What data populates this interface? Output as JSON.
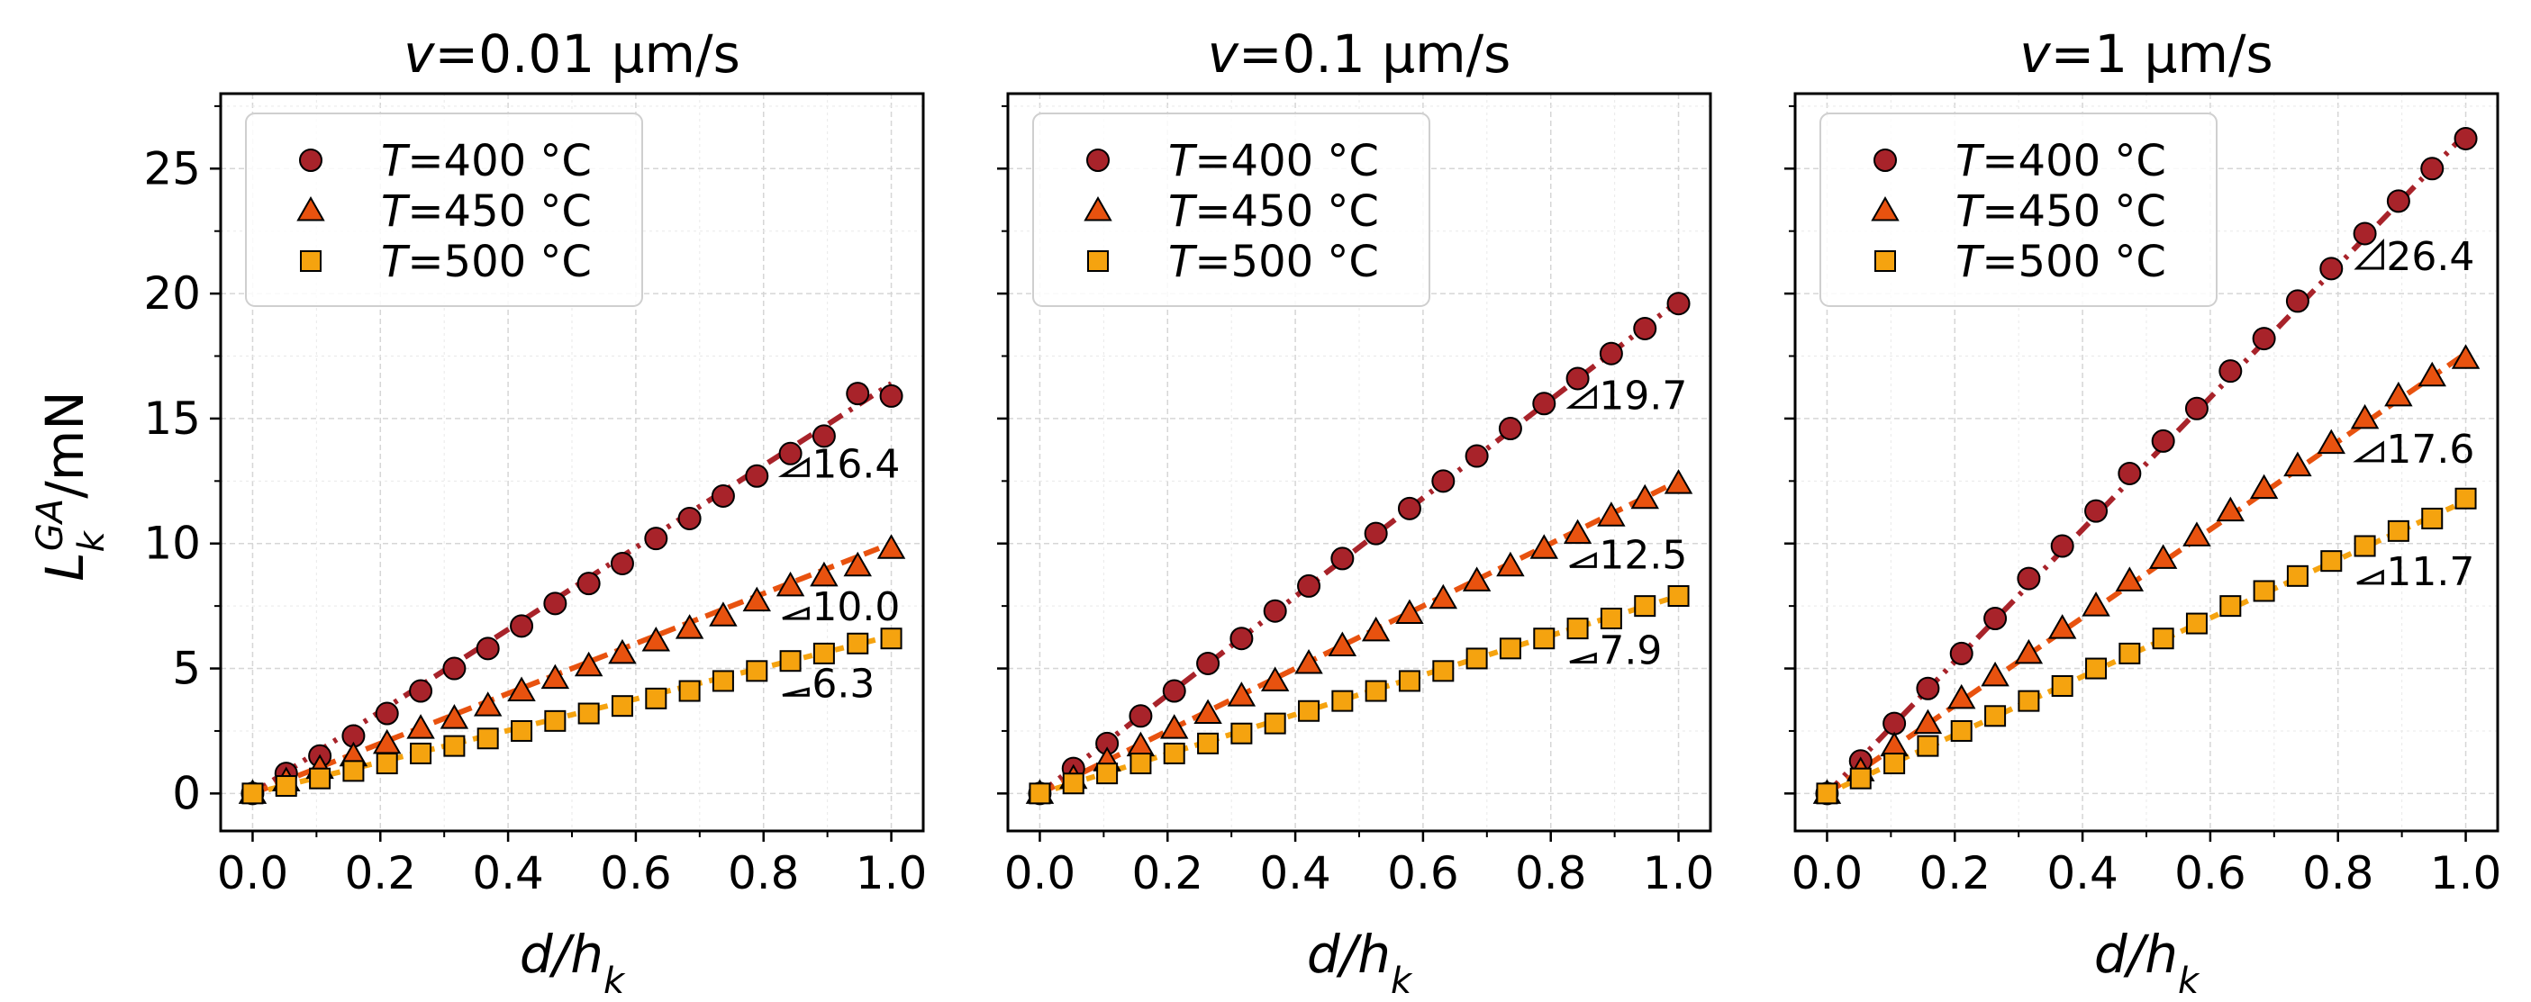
{
  "ylabel_main": "L",
  "ylabel_sub": "k",
  "ylabel_sup": "GA",
  "ylabel_unit": "/mN",
  "xlabel_main": "d/h",
  "xlabel_sub": "k",
  "legend": [
    {
      "label_T": "T",
      "label_rest": "=400 °C",
      "marker": "circle",
      "color": "#a8232a"
    },
    {
      "label_T": "T",
      "label_rest": "=450 °C",
      "marker": "triangle",
      "color": "#e8520f"
    },
    {
      "label_T": "T",
      "label_rest": "=500 °C",
      "marker": "square",
      "color": "#f5a30f"
    }
  ],
  "line_colors": [
    "#a8232a",
    "#e8520f",
    "#f5a30f"
  ],
  "chart_data": [
    {
      "type": "scatter",
      "title_v": "v",
      "title_rest": "=0.01 μm/s",
      "xlabel": "d/hk",
      "ylabel": "LkGA/mN",
      "xlim": [
        -0.05,
        1.05
      ],
      "ylim": [
        -1.5,
        28
      ],
      "xticks": [
        "0.0",
        "0.2",
        "0.4",
        "0.6",
        "0.8",
        "1.0"
      ],
      "yticks": [
        "0",
        "5",
        "10",
        "15",
        "20",
        "25"
      ],
      "x": [
        0,
        0.0526,
        0.1053,
        0.1579,
        0.2105,
        0.2632,
        0.3158,
        0.3684,
        0.4211,
        0.4737,
        0.5263,
        0.5789,
        0.6316,
        0.6842,
        0.7368,
        0.7895,
        0.8421,
        0.8947,
        0.9474,
        1.0
      ],
      "series": [
        {
          "name": "T=400 °C",
          "slope": 16.4,
          "slope_label": "16.4",
          "values": [
            0,
            0.8,
            1.5,
            2.3,
            3.2,
            4.1,
            5.0,
            5.8,
            6.7,
            7.6,
            8.4,
            9.2,
            10.2,
            11.0,
            11.9,
            12.7,
            13.6,
            14.3,
            16.0,
            15.9
          ]
        },
        {
          "name": "T=450 °C",
          "slope": 10.0,
          "slope_label": "10.0",
          "values": [
            0,
            0.5,
            1.0,
            1.5,
            2.0,
            2.6,
            3.0,
            3.5,
            4.1,
            4.6,
            5.1,
            5.6,
            6.1,
            6.6,
            7.1,
            7.7,
            8.3,
            8.7,
            9.1,
            9.8
          ]
        },
        {
          "name": "T=500 °C",
          "slope": 6.3,
          "slope_label": "6.3",
          "values": [
            0,
            0.3,
            0.6,
            0.9,
            1.2,
            1.6,
            1.9,
            2.2,
            2.5,
            2.9,
            3.2,
            3.5,
            3.8,
            4.1,
            4.5,
            4.9,
            5.3,
            5.6,
            6.0,
            6.2
          ]
        }
      ]
    },
    {
      "type": "scatter",
      "title_v": "v",
      "title_rest": "=0.1 μm/s",
      "xlabel": "d/hk",
      "ylabel": "LkGA/mN",
      "xlim": [
        -0.05,
        1.05
      ],
      "ylim": [
        -1.5,
        28
      ],
      "xticks": [
        "0.0",
        "0.2",
        "0.4",
        "0.6",
        "0.8",
        "1.0"
      ],
      "yticks": [
        "0",
        "5",
        "10",
        "15",
        "20",
        "25"
      ],
      "x": [
        0,
        0.0526,
        0.1053,
        0.1579,
        0.2105,
        0.2632,
        0.3158,
        0.3684,
        0.4211,
        0.4737,
        0.5263,
        0.5789,
        0.6316,
        0.6842,
        0.7368,
        0.7895,
        0.8421,
        0.8947,
        0.9474,
        1.0
      ],
      "series": [
        {
          "name": "T=400 °C",
          "slope": 19.7,
          "slope_label": "19.7",
          "values": [
            0,
            1.0,
            2.0,
            3.1,
            4.1,
            5.2,
            6.2,
            7.3,
            8.3,
            9.4,
            10.4,
            11.4,
            12.5,
            13.5,
            14.6,
            15.6,
            16.6,
            17.6,
            18.6,
            19.6
          ]
        },
        {
          "name": "T=450 °C",
          "slope": 12.5,
          "slope_label": "12.5",
          "values": [
            0,
            0.6,
            1.3,
            1.9,
            2.6,
            3.2,
            3.9,
            4.5,
            5.2,
            5.9,
            6.5,
            7.2,
            7.8,
            8.5,
            9.1,
            9.8,
            10.4,
            11.1,
            11.8,
            12.4
          ]
        },
        {
          "name": "T=500 °C",
          "slope": 7.9,
          "slope_label": "7.9",
          "values": [
            0,
            0.4,
            0.8,
            1.2,
            1.6,
            2.0,
            2.4,
            2.8,
            3.3,
            3.7,
            4.1,
            4.5,
            4.9,
            5.4,
            5.8,
            6.2,
            6.6,
            7.0,
            7.5,
            7.9
          ]
        }
      ]
    },
    {
      "type": "scatter",
      "title_v": "v",
      "title_rest": "=1 μm/s",
      "xlabel": "d/hk",
      "ylabel": "LkGA/mN",
      "xlim": [
        -0.05,
        1.05
      ],
      "ylim": [
        -1.5,
        28
      ],
      "xticks": [
        "0.0",
        "0.2",
        "0.4",
        "0.6",
        "0.8",
        "1.0"
      ],
      "yticks": [
        "0",
        "5",
        "10",
        "15",
        "20",
        "25"
      ],
      "x": [
        0,
        0.0526,
        0.1053,
        0.1579,
        0.2105,
        0.2632,
        0.3158,
        0.3684,
        0.4211,
        0.4737,
        0.5263,
        0.5789,
        0.6316,
        0.6842,
        0.7368,
        0.7895,
        0.8421,
        0.8947,
        0.9474,
        1.0
      ],
      "series": [
        {
          "name": "T=400 °C",
          "slope": 26.4,
          "slope_label": "26.4",
          "values": [
            0,
            1.3,
            2.8,
            4.2,
            5.6,
            7.0,
            8.6,
            9.9,
            11.3,
            12.8,
            14.1,
            15.4,
            16.9,
            18.2,
            19.7,
            21.0,
            22.4,
            23.7,
            25.0,
            26.2
          ]
        },
        {
          "name": "T=450 °C",
          "slope": 17.6,
          "slope_label": "17.6",
          "values": [
            0,
            0.9,
            1.9,
            2.8,
            3.8,
            4.7,
            5.6,
            6.6,
            7.5,
            8.5,
            9.4,
            10.3,
            11.3,
            12.2,
            13.1,
            14.0,
            15.0,
            15.9,
            16.7,
            17.4
          ]
        },
        {
          "name": "T=500 °C",
          "slope": 11.7,
          "slope_label": "11.7",
          "values": [
            0,
            0.6,
            1.2,
            1.9,
            2.5,
            3.1,
            3.7,
            4.3,
            5.0,
            5.6,
            6.2,
            6.8,
            7.5,
            8.1,
            8.7,
            9.3,
            9.9,
            10.5,
            11.0,
            11.8
          ]
        }
      ]
    }
  ]
}
